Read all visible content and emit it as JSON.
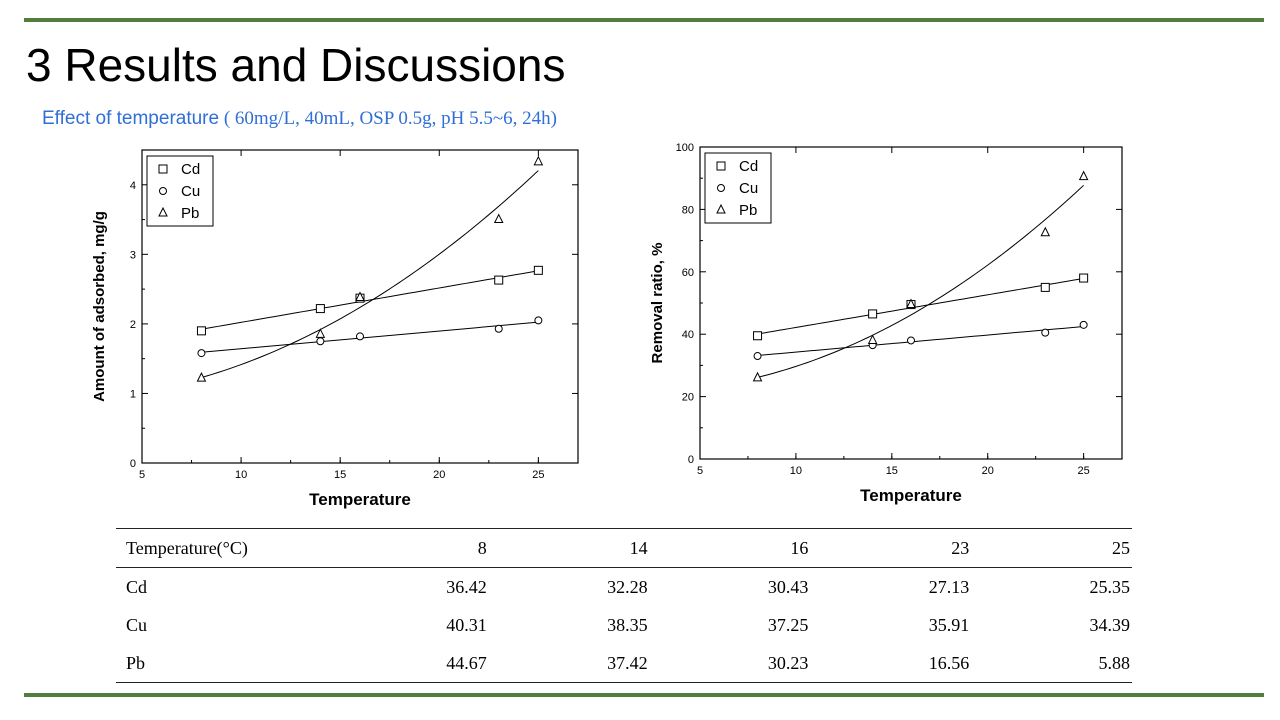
{
  "title": "3 Results and Discussions",
  "subtitle": {
    "prefix": "Effect of temperature",
    "conditions": " ( 60mg/L, 40mL, OSP 0.5g,  pH 5.5~6, 24h)"
  },
  "chart_data": [
    {
      "type": "scatter",
      "title": "",
      "xlabel": "Temperature",
      "ylabel": "Amount of adsorbed, mg/g",
      "xlim": [
        5,
        27
      ],
      "ylim": [
        0,
        4.5
      ],
      "xticks": [
        5,
        10,
        15,
        20,
        25
      ],
      "yticks": [
        0,
        1,
        2,
        3,
        4
      ],
      "grid": false,
      "legend": "top-left",
      "x": [
        8,
        14,
        16,
        23,
        25
      ],
      "series": [
        {
          "name": "Cd",
          "marker": "square",
          "values": [
            1.9,
            2.22,
            2.37,
            2.63,
            2.77
          ]
        },
        {
          "name": "Cu",
          "marker": "circle",
          "values": [
            1.58,
            1.75,
            1.82,
            1.93,
            2.05
          ]
        },
        {
          "name": "Pb",
          "marker": "triangle",
          "values": [
            1.22,
            1.85,
            2.38,
            3.5,
            4.33
          ]
        }
      ]
    },
    {
      "type": "scatter",
      "title": "",
      "xlabel": "Temperature",
      "ylabel": "Removal ratio, %",
      "xlim": [
        5,
        27
      ],
      "ylim": [
        0,
        100
      ],
      "xticks": [
        5,
        10,
        15,
        20,
        25
      ],
      "yticks": [
        0,
        20,
        40,
        60,
        80,
        100
      ],
      "grid": false,
      "legend": "top-left",
      "x": [
        8,
        14,
        16,
        23,
        25
      ],
      "series": [
        {
          "name": "Cd",
          "marker": "square",
          "values": [
            39.5,
            46.5,
            49.5,
            55,
            58
          ]
        },
        {
          "name": "Cu",
          "marker": "circle",
          "values": [
            33,
            36.5,
            38,
            40.5,
            43
          ]
        },
        {
          "name": "Pb",
          "marker": "triangle",
          "values": [
            26,
            38,
            49.5,
            72.5,
            90.5
          ]
        }
      ]
    }
  ],
  "table": {
    "header": [
      "Temperature(°C)",
      "8",
      "14",
      "16",
      "23",
      "25"
    ],
    "rows": [
      [
        "Cd",
        "36.42",
        "32.28",
        "30.43",
        "27.13",
        "25.35"
      ],
      [
        "Cu",
        "40.31",
        "38.35",
        "37.25",
        "35.91",
        "34.39"
      ],
      [
        "Pb",
        "44.67",
        "37.42",
        "30.23",
        "16.56",
        "5.88"
      ]
    ]
  }
}
